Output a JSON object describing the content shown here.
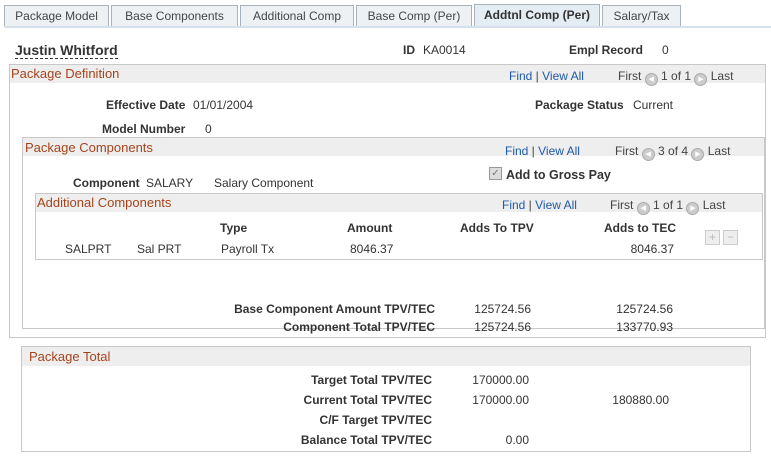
{
  "tabs": [
    {
      "label": "Package Model"
    },
    {
      "label": "Base Components"
    },
    {
      "label": "Additional Comp"
    },
    {
      "label": "Base Comp (Per)"
    },
    {
      "label": "Addtnl Comp (Per)",
      "active": true
    },
    {
      "label": "Salary/Tax"
    }
  ],
  "employee": {
    "name": "Justin Whitford",
    "id_label": "ID",
    "id": "KA0014",
    "empl_record_label": "Empl Record",
    "empl_record": "0"
  },
  "package_definition": {
    "title": "Package Definition",
    "find": "Find",
    "view_all": "View All",
    "first": "First",
    "count": "1 of 1",
    "last": "Last",
    "effective_date_label": "Effective Date",
    "effective_date": "01/01/2004",
    "status_label": "Package Status",
    "status": "Current",
    "model_number_label": "Model Number",
    "model_number": "0"
  },
  "package_components": {
    "title": "Package Components",
    "find": "Find",
    "view_all": "View All",
    "first": "First",
    "count": "3 of 4",
    "last": "Last",
    "component_label": "Component",
    "component": "SALARY",
    "component_desc": "Salary Component",
    "add_gross_label": "Add to Gross Pay",
    "add_gross_checked": true,
    "base_amount_label": "Base Component Amount TPV/TEC",
    "base_amount_tpv": "125724.56",
    "base_amount_tec": "125724.56",
    "total_label": "Component Total TPV/TEC",
    "total_tpv": "125724.56",
    "total_tec": "133770.93"
  },
  "additional_components": {
    "title": "Additional Components",
    "find": "Find",
    "view_all": "View All",
    "first": "First",
    "count": "1 of 1",
    "last": "Last",
    "headers": {
      "type": "Type",
      "amount": "Amount",
      "tpv": "Adds To TPV",
      "tec": "Adds to TEC"
    },
    "rows": [
      {
        "code": "SALPRT",
        "name": "Sal PRT",
        "type": "Payroll Tx",
        "amount": "8046.37",
        "tpv": "",
        "tec": "8046.37"
      }
    ]
  },
  "package_total": {
    "title": "Package Total",
    "target_label": "Target Total TPV/TEC",
    "target_tpv": "170000.00",
    "current_label": "Current Total TPV/TEC",
    "current_tpv": "170000.00",
    "current_tec": "180880.00",
    "cf_label": "C/F Target TPV/TEC",
    "balance_label": "Balance Total TPV/TEC",
    "balance_tpv": "0.00"
  }
}
